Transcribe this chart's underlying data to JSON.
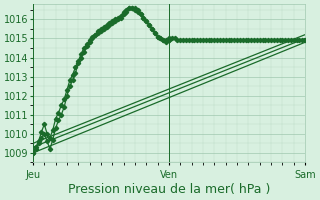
{
  "bg_color": "#d8f0e0",
  "grid_color": "#a0c8b0",
  "line_color": "#1a6b2a",
  "marker_color": "#1a6b2a",
  "xlabel": "Pression niveau de la mer( hPa )",
  "xlabel_fontsize": 9,
  "ylabel_fontsize": 7,
  "tick_fontsize": 7,
  "ylim": [
    1008.5,
    1016.8
  ],
  "yticks": [
    1009,
    1010,
    1011,
    1012,
    1013,
    1014,
    1015,
    1016
  ],
  "xtick_labels": [
    "Jeu",
    "Ven",
    "Sam"
  ],
  "xtick_positions": [
    0,
    48,
    96
  ],
  "vline_positions": [
    0,
    48,
    96
  ],
  "series1": [
    1009.0,
    1009.3,
    1009.6,
    1010.1,
    1010.5,
    1010.0,
    1009.8,
    1010.2,
    1010.8,
    1011.1,
    1011.5,
    1011.8,
    1012.3,
    1012.8,
    1013.1,
    1013.5,
    1013.8,
    1014.2,
    1014.5,
    1014.7,
    1014.9,
    1015.1,
    1015.2,
    1015.4,
    1015.5,
    1015.6,
    1015.7,
    1015.8,
    1015.9,
    1016.0,
    1016.1,
    1016.2,
    1016.4,
    1016.5,
    1016.6,
    1016.6,
    1016.5,
    1016.4,
    1016.3,
    1016.1,
    1015.9,
    1015.7,
    1015.5,
    1015.3,
    1015.1,
    1015.0,
    1014.9,
    1014.8,
    1014.9,
    1015.0,
    1015.0,
    1014.9,
    1014.9,
    1014.9,
    1014.9,
    1014.9,
    1014.9,
    1014.9,
    1014.9,
    1014.9,
    1014.9,
    1014.9,
    1014.9,
    1014.9,
    1014.9,
    1014.9,
    1014.9,
    1014.9,
    1014.9,
    1014.9,
    1014.9,
    1014.9,
    1014.9,
    1014.9,
    1014.9,
    1014.9,
    1014.9,
    1014.9,
    1014.9,
    1014.9,
    1014.9,
    1014.9,
    1014.9,
    1014.9,
    1014.9,
    1014.9,
    1014.9,
    1014.9,
    1014.9,
    1014.9,
    1014.9,
    1014.9,
    1014.9,
    1014.9,
    1014.9,
    1014.9,
    1014.9
  ],
  "series2": [
    1009.0,
    1009.2,
    1009.5,
    1009.8,
    1010.0,
    1009.6,
    1009.2,
    1009.7,
    1010.3,
    1010.7,
    1011.0,
    1011.4,
    1012.0,
    1012.5,
    1012.8,
    1013.2,
    1013.7,
    1014.0,
    1014.3,
    1014.6,
    1014.8,
    1015.0,
    1015.2,
    1015.3,
    1015.4,
    1015.5,
    1015.6,
    1015.7,
    1015.8,
    1015.9,
    1016.0,
    1016.1,
    1016.3,
    1016.4,
    1016.6,
    1016.6,
    1016.6,
    1016.5,
    1016.3,
    1016.1,
    1015.9,
    1015.7,
    1015.5,
    1015.3,
    1015.1,
    1015.0,
    1014.9,
    1014.9,
    1015.0,
    1015.0,
    1015.0,
    1015.0,
    1015.0,
    1015.0,
    1015.0,
    1015.0,
    1015.0,
    1015.0,
    1015.0,
    1015.0,
    1015.0,
    1015.0,
    1015.0,
    1015.0,
    1015.0,
    1015.0,
    1015.0,
    1015.0,
    1015.0,
    1015.0,
    1015.0,
    1015.0,
    1015.0,
    1015.0,
    1015.0,
    1015.0,
    1015.0,
    1015.0,
    1015.0,
    1015.0,
    1015.0,
    1015.0,
    1015.0,
    1015.0,
    1015.0,
    1015.0,
    1015.0,
    1015.0,
    1015.0,
    1015.0,
    1015.0,
    1015.0,
    1015.0,
    1015.0,
    1015.0,
    1015.0,
    1015.0
  ],
  "series3_x": [
    0,
    96
  ],
  "series3_y": [
    1009.0,
    1014.8
  ],
  "series4_x": [
    0,
    96
  ],
  "series4_y": [
    1009.3,
    1015.0
  ],
  "series5_x": [
    0,
    96
  ],
  "series5_y": [
    1009.5,
    1015.2
  ]
}
